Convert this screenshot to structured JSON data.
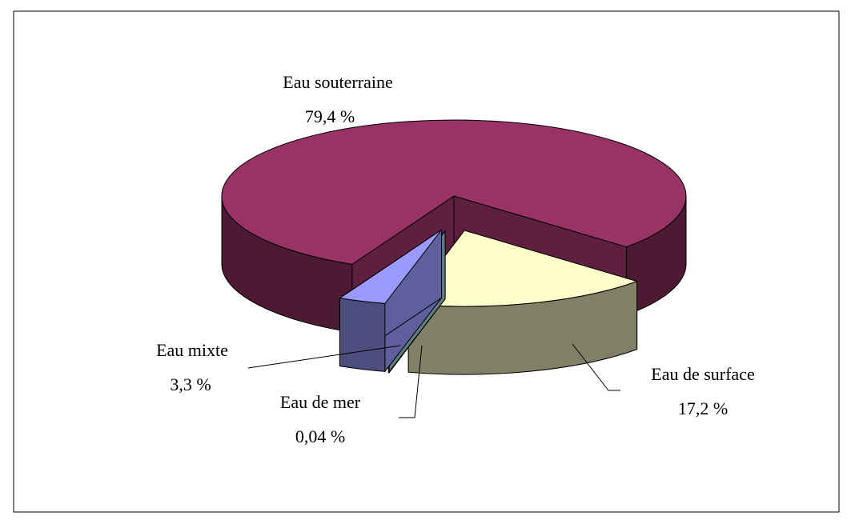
{
  "chart_data": {
    "type": "pie3d",
    "categories": [
      "Eau souterraine",
      "Eau de surface",
      "Eau de mer",
      "Eau mixte"
    ],
    "values": [
      79.4,
      17.2,
      0.04,
      3.3
    ],
    "value_labels": [
      "79,4 %",
      "17,2 %",
      "0,04 %",
      "3,3 %"
    ],
    "colors": [
      "#993366",
      "#ffffcc",
      "#99cccc",
      "#9999ff"
    ]
  }
}
